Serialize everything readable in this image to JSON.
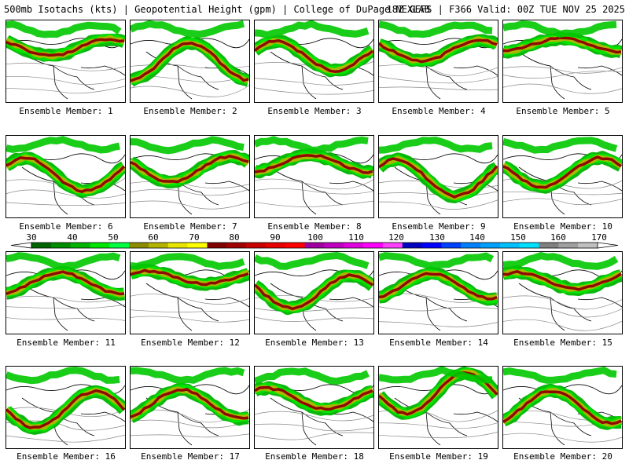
{
  "header": {
    "left_title": "500mb Isotachs (kts) | Geopotential Height (gpm) | College of DuPage NEXLAB",
    "right_title": "18Z GEFS | F366 Valid: 00Z TUE NOV 25 2025"
  },
  "members": [
    {
      "label": "Ensemble Member: 1"
    },
    {
      "label": "Ensemble Member: 2"
    },
    {
      "label": "Ensemble Member: 3"
    },
    {
      "label": "Ensemble Member: 4"
    },
    {
      "label": "Ensemble Member: 5"
    },
    {
      "label": "Ensemble Member: 6"
    },
    {
      "label": "Ensemble Member: 7"
    },
    {
      "label": "Ensemble Member: 8"
    },
    {
      "label": "Ensemble Member: 9"
    },
    {
      "label": "Ensemble Member: 10"
    },
    {
      "label": "Ensemble Member: 11"
    },
    {
      "label": "Ensemble Member: 12"
    },
    {
      "label": "Ensemble Member: 13"
    },
    {
      "label": "Ensemble Member: 14"
    },
    {
      "label": "Ensemble Member: 15"
    },
    {
      "label": "Ensemble Member: 16"
    },
    {
      "label": "Ensemble Member: 17"
    },
    {
      "label": "Ensemble Member: 18"
    },
    {
      "label": "Ensemble Member: 19"
    },
    {
      "label": "Ensemble Member: 20"
    }
  ],
  "colorbar": {
    "ticks": [
      "30",
      "40",
      "50",
      "60",
      "70",
      "80",
      "90",
      "100",
      "110",
      "120",
      "130",
      "140",
      "150",
      "160",
      "170"
    ],
    "colors": [
      "#006400",
      "#008c00",
      "#00b400",
      "#00e600",
      "#00ff40",
      "#8c8c00",
      "#b4b400",
      "#e6e600",
      "#ffff00",
      "#800000",
      "#a00000",
      "#c80000",
      "#e60000",
      "#ff0000",
      "#a000a0",
      "#c000c0",
      "#e000e0",
      "#ff00ff",
      "#ff40ff",
      "#0000c0",
      "#0000ff",
      "#0040ff",
      "#0080ff",
      "#00a0ff",
      "#00c0ff",
      "#00e0ff",
      "#808080",
      "#a0a0a0",
      "#c0c0c0"
    ]
  }
}
